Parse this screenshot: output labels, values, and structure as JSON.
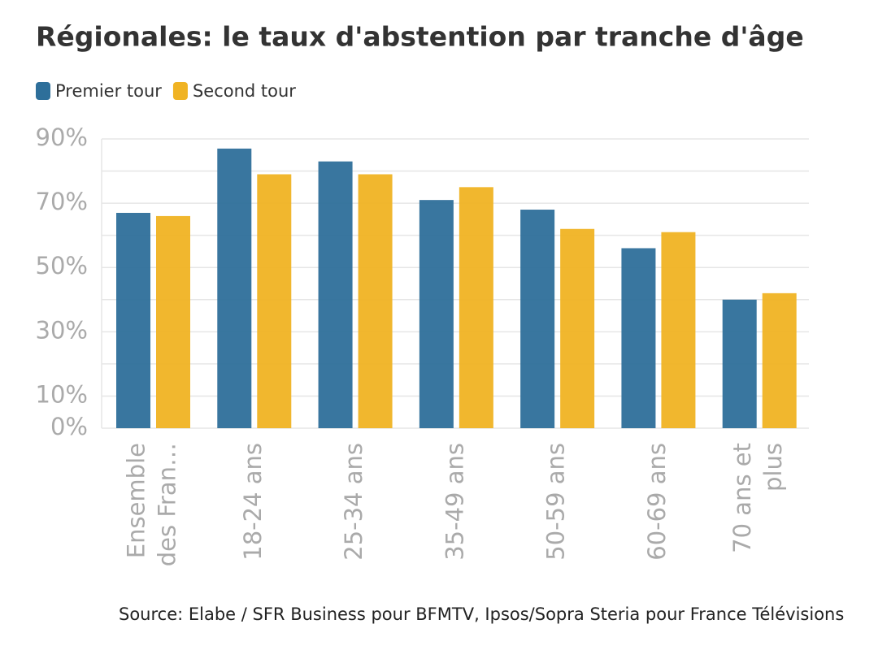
{
  "chart_data": {
    "type": "bar",
    "title": "Régionales: le taux d'abstention par tranche d'âge",
    "source": "Source: Elabe / SFR Business pour BFMTV, Ipsos/Sopra Steria pour France Télévisions",
    "categories": [
      [
        "Ensemble",
        "des Fran…"
      ],
      [
        "18-24 ans"
      ],
      [
        "25-34 ans"
      ],
      [
        "35-49 ans"
      ],
      [
        "50-59 ans"
      ],
      [
        "60-69 ans"
      ],
      [
        "70 ans et",
        "plus"
      ]
    ],
    "series": [
      {
        "name": "Premier tour",
        "color": "#2e6f9a",
        "values": [
          67,
          87,
          83,
          71,
          68,
          56,
          40
        ]
      },
      {
        "name": "Second tour",
        "color": "#f0b323",
        "values": [
          66,
          79,
          79,
          75,
          62,
          61,
          42
        ]
      }
    ],
    "ylim": [
      0,
      90
    ],
    "yticks": [
      {
        "value": 0,
        "label": "0%"
      },
      {
        "value": 10,
        "label": "10%"
      },
      {
        "value": 20,
        "label": null
      },
      {
        "value": 30,
        "label": "30%"
      },
      {
        "value": 40,
        "label": null
      },
      {
        "value": 50,
        "label": "50%"
      },
      {
        "value": 60,
        "label": null
      },
      {
        "value": 70,
        "label": "70%"
      },
      {
        "value": 80,
        "label": null
      },
      {
        "value": 90,
        "label": "90%"
      }
    ],
    "grid": true
  }
}
